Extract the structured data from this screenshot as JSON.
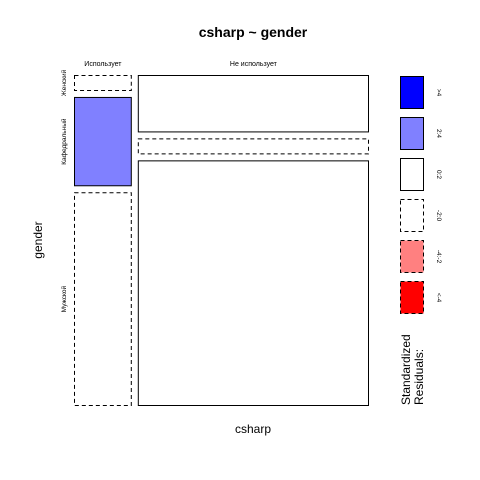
{
  "chart_data": {
    "type": "mosaic",
    "title": "csharp ~ gender",
    "xlabel": "csharp",
    "ylabel": "gender",
    "x_categories": [
      "Использует",
      "Не использует"
    ],
    "y_categories": [
      "Женский",
      "Кафедральный",
      "Мужской"
    ],
    "cells": [
      {
        "csharp": "Использует",
        "gender": "Женский",
        "residual_class": "-2:0"
      },
      {
        "csharp": "Использует",
        "gender": "Кафедральный",
        "residual_class": "2:4"
      },
      {
        "csharp": "Использует",
        "gender": "Мужской",
        "residual_class": "-2:0"
      },
      {
        "csharp": "Не использует",
        "gender": "Женский",
        "residual_class": "0:2"
      },
      {
        "csharp": "Не использует",
        "gender": "Кафедральный",
        "residual_class": "-2:0"
      },
      {
        "csharp": "Не использует",
        "gender": "Мужской",
        "residual_class": "0:2"
      }
    ],
    "proportions": {
      "x": {
        "Использует": 0.2,
        "Не использует": 0.8
      },
      "y_within_x": {
        "Использует": {
          "Женский": 0.05,
          "Кафедральный": 0.28,
          "Мужской": 0.67
        },
        "Не использует": {
          "Женский": 0.18,
          "Кафедральный": 0.05,
          "Мужской": 0.77
        }
      }
    },
    "legend": {
      "title_line1": "Standardized",
      "title_line2": "Residuals:",
      "placement": "right",
      "entries": [
        {
          "label": ">4",
          "fill": "#0000ff",
          "dashed": false
        },
        {
          "label": "2:4",
          "fill": "#8080ff",
          "dashed": false
        },
        {
          "label": "0:2",
          "fill": "#ffffff",
          "dashed": false
        },
        {
          "label": "-2:0",
          "fill": "#ffffff",
          "dashed": true
        },
        {
          "label": "-4:-2",
          "fill": "#ff8080",
          "dashed": true
        },
        {
          "label": "<-4",
          "fill": "#ff0000",
          "dashed": true
        }
      ]
    }
  }
}
